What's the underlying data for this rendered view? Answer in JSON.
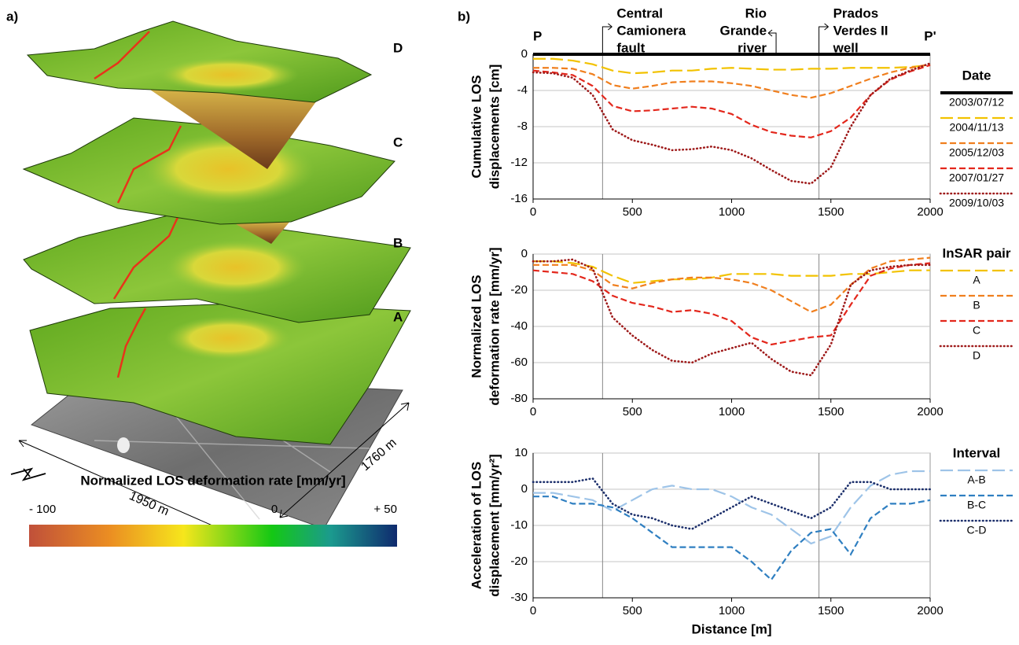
{
  "panel_labels": [
    "a)",
    "b)"
  ],
  "figure_a": {
    "layer_labels": [
      "D",
      "C",
      "B",
      "A"
    ],
    "dimensions": [
      "1950 m",
      "1760 m"
    ],
    "colorbar": {
      "title": "Normalized LOS deformation rate [mm/yr]",
      "lim": [
        -100,
        50
      ],
      "ticks": [
        {
          "value": -100,
          "label": "- 100"
        },
        0,
        {
          "value": 50,
          "label": "+ 50"
        }
      ]
    }
  },
  "chart_data": [
    {
      "type": "line",
      "ylabel": [
        "Cumulative LOS",
        "displacements [cm]"
      ],
      "endpoints": [
        "P",
        "P'"
      ],
      "annotations": [
        {
          "lines": [
            "Central",
            "Camionera",
            "fault"
          ],
          "x": 350
        },
        {
          "lines": [
            "Rio",
            "Grande",
            "river"
          ],
          "x": 1224
        },
        {
          "lines": [
            "Prados",
            "Verdes II",
            "well"
          ],
          "x": 1440
        }
      ],
      "vlines": [
        350,
        1440
      ],
      "xlim": [
        0,
        2000
      ],
      "xticks": [
        0,
        500,
        1000,
        1500,
        2000
      ],
      "ylim": [
        -16,
        0
      ],
      "yticks": [
        0,
        -4,
        -8,
        -12,
        -16
      ],
      "grid": true,
      "legend_title": "Date",
      "x": [
        0,
        100,
        200,
        300,
        400,
        500,
        600,
        700,
        800,
        900,
        1000,
        1100,
        1200,
        1300,
        1400,
        1500,
        1600,
        1700,
        1800,
        1900,
        2000
      ],
      "series": [
        {
          "name": "2003/07/12",
          "color": "#000000",
          "style": "solid",
          "values": [
            0,
            0,
            0,
            0,
            0,
            0,
            0,
            0,
            0,
            0,
            0,
            0,
            0,
            0,
            0,
            0,
            0,
            0,
            0,
            0,
            0
          ]
        },
        {
          "name": "2004/11/13",
          "color": "#f2c200",
          "style": "longdash",
          "values": [
            -0.5,
            -0.5,
            -0.7,
            -1.1,
            -1.8,
            -2.1,
            -2.0,
            -1.8,
            -1.8,
            -1.6,
            -1.5,
            -1.6,
            -1.7,
            -1.7,
            -1.6,
            -1.6,
            -1.5,
            -1.5,
            -1.5,
            -1.4,
            -1.2
          ]
        },
        {
          "name": "2005/12/03",
          "color": "#f07f1e",
          "style": "dashed",
          "values": [
            -1.5,
            -1.5,
            -1.6,
            -2.2,
            -3.4,
            -3.8,
            -3.5,
            -3.1,
            -3.0,
            -3.0,
            -3.2,
            -3.5,
            -4.0,
            -4.5,
            -4.8,
            -4.3,
            -3.5,
            -2.7,
            -2.0,
            -1.5,
            -1.1
          ]
        },
        {
          "name": "2007/01/27",
          "color": "#e3271c",
          "style": "dashed",
          "values": [
            -1.8,
            -2.0,
            -2.3,
            -3.5,
            -5.7,
            -6.3,
            -6.2,
            -6.0,
            -5.8,
            -6.0,
            -6.6,
            -7.8,
            -8.6,
            -9.0,
            -9.2,
            -8.5,
            -7.0,
            -4.5,
            -2.8,
            -1.9,
            -1.2
          ]
        },
        {
          "name": "2009/10/03",
          "color": "#9e1a1a",
          "style": "dotted",
          "values": [
            -2.0,
            -2.1,
            -2.6,
            -4.5,
            -8.3,
            -9.5,
            -10.0,
            -10.6,
            -10.5,
            -10.2,
            -10.6,
            -11.5,
            -12.8,
            -14.0,
            -14.3,
            -12.5,
            -8.0,
            -4.5,
            -2.7,
            -1.8,
            -1.0
          ]
        }
      ]
    },
    {
      "type": "line",
      "ylabel": [
        "Normalized LOS",
        "deformation rate [mm/yr]"
      ],
      "vlines": [
        350,
        1440
      ],
      "xlim": [
        0,
        2000
      ],
      "xticks": [
        0,
        500,
        1000,
        1500,
        2000
      ],
      "ylim": [
        -80,
        0
      ],
      "yticks": [
        0,
        -20,
        -40,
        -60,
        -80
      ],
      "grid": true,
      "legend_title": "InSAR pair",
      "x": [
        0,
        100,
        200,
        300,
        400,
        500,
        600,
        700,
        800,
        900,
        1000,
        1100,
        1200,
        1300,
        1400,
        1500,
        1600,
        1700,
        1800,
        1900,
        2000
      ],
      "series": [
        {
          "name": "A",
          "color": "#f2c200",
          "style": "longdash",
          "values": [
            -4,
            -4,
            -5,
            -7,
            -12,
            -16,
            -15,
            -14,
            -14,
            -13,
            -11,
            -11,
            -11,
            -12,
            -12,
            -12,
            -11,
            -11,
            -10,
            -9,
            -9
          ]
        },
        {
          "name": "B",
          "color": "#f07f1e",
          "style": "dashed",
          "values": [
            -6,
            -6,
            -6,
            -9,
            -17,
            -19,
            -16,
            -14,
            -13,
            -13,
            -14,
            -16,
            -20,
            -26,
            -32,
            -28,
            -17,
            -8,
            -4,
            -3,
            -2
          ]
        },
        {
          "name": "C",
          "color": "#e3271c",
          "style": "dashed",
          "values": [
            -9,
            -10,
            -11,
            -15,
            -23,
            -27,
            -29,
            -32,
            -31,
            -33,
            -37,
            -46,
            -50,
            -48,
            -46,
            -45,
            -28,
            -12,
            -8,
            -6,
            -5
          ]
        },
        {
          "name": "D",
          "color": "#9e1a1a",
          "style": "dotted",
          "values": [
            -4,
            -4,
            -3,
            -8,
            -35,
            -45,
            -53,
            -59,
            -60,
            -55,
            -52,
            -49,
            -58,
            -65,
            -67,
            -50,
            -17,
            -9,
            -7,
            -6,
            -6
          ]
        }
      ]
    },
    {
      "type": "line",
      "ylabel": [
        "Acceleration of LOS",
        "displacement [mm/yr²]"
      ],
      "xlabel": "Distance [m]",
      "vlines": [
        350,
        1440
      ],
      "xlim": [
        0,
        2000
      ],
      "xticks": [
        0,
        500,
        1000,
        1500,
        2000
      ],
      "ylim": [
        -30,
        10
      ],
      "yticks": [
        10,
        0,
        -10,
        -20,
        -30
      ],
      "grid": true,
      "legend_title": "Interval",
      "x": [
        0,
        100,
        200,
        300,
        400,
        500,
        600,
        700,
        800,
        900,
        1000,
        1100,
        1200,
        1300,
        1400,
        1500,
        1600,
        1700,
        1800,
        1900,
        2000
      ],
      "series": [
        {
          "name": "A-B",
          "color": "#9ec4e8",
          "style": "longdash",
          "values": [
            -1,
            -1,
            -2,
            -3,
            -6,
            -3,
            0,
            1,
            0,
            0,
            -2,
            -5,
            -7,
            -11,
            -15,
            -13,
            -5,
            1,
            4,
            5,
            5
          ]
        },
        {
          "name": "B-C",
          "color": "#2f7fc1",
          "style": "dashed",
          "values": [
            -2,
            -2,
            -4,
            -4,
            -5,
            -8,
            -12,
            -16,
            -16,
            -16,
            -16,
            -20,
            -25,
            -17,
            -12,
            -11,
            -18,
            -8,
            -4,
            -4,
            -3
          ]
        },
        {
          "name": "C-D",
          "color": "#1c2f6b",
          "style": "dotted",
          "values": [
            2,
            2,
            2,
            3,
            -4,
            -7,
            -8,
            -10,
            -11,
            -8,
            -5,
            -2,
            -4,
            -6,
            -8,
            -5,
            2,
            2,
            0,
            0,
            0
          ]
        }
      ]
    }
  ]
}
